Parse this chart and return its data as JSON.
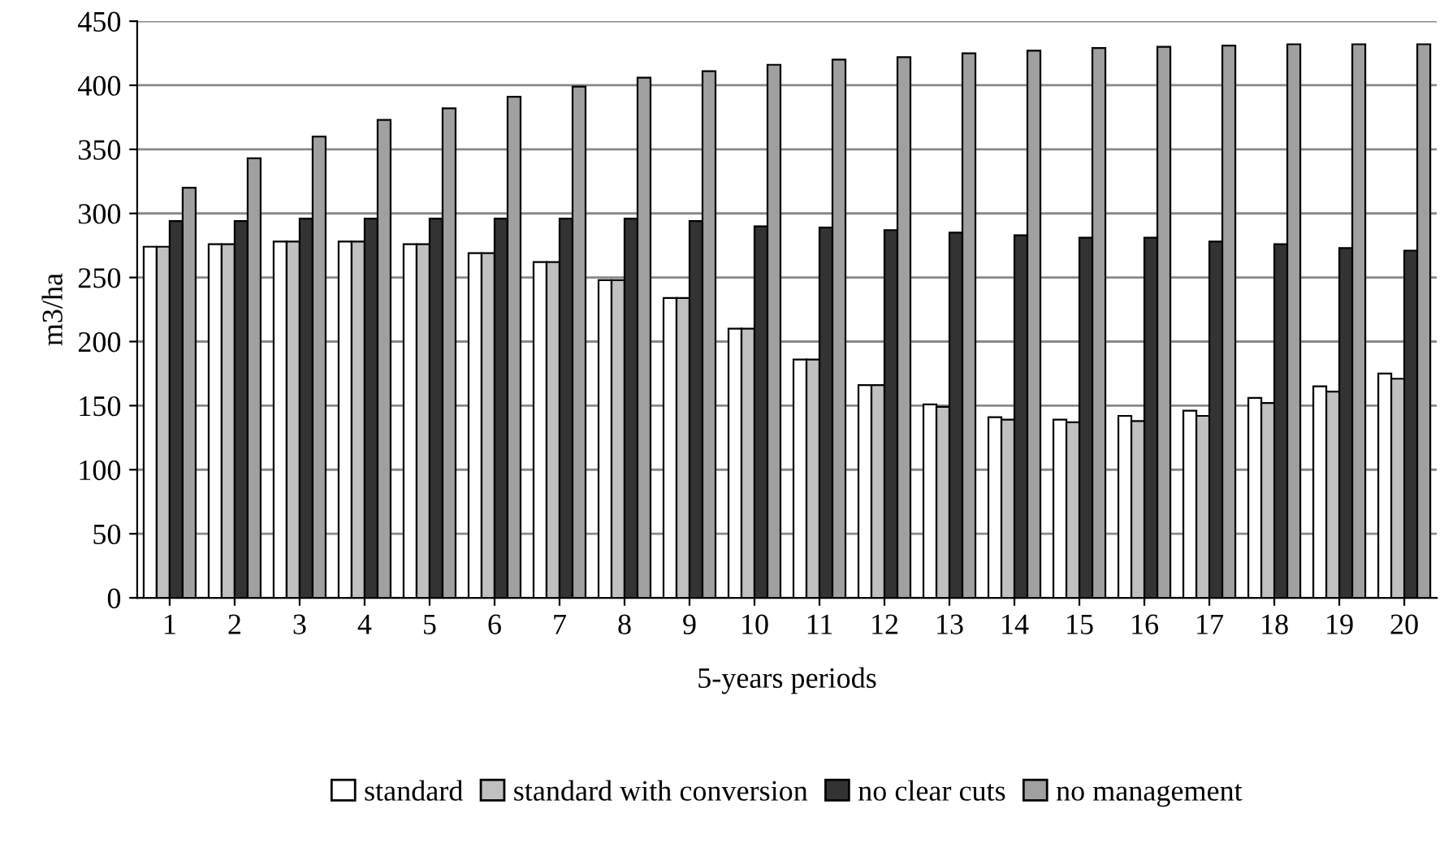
{
  "chart_data": {
    "type": "bar",
    "xlabel": "5-years periods",
    "ylabel": "m3/ha",
    "categories": [
      "1",
      "2",
      "3",
      "4",
      "5",
      "6",
      "7",
      "8",
      "9",
      "10",
      "11",
      "12",
      "13",
      "14",
      "15",
      "16",
      "17",
      "18",
      "19",
      "20"
    ],
    "series": [
      {
        "name": "standard",
        "color": "#ffffff",
        "values": [
          274,
          276,
          278,
          278,
          276,
          269,
          262,
          248,
          234,
          210,
          186,
          166,
          151,
          141,
          139,
          142,
          146,
          156,
          165,
          175
        ]
      },
      {
        "name": "standard with conversion",
        "color": "#c0c0c0",
        "values": [
          274,
          276,
          278,
          278,
          276,
          269,
          262,
          248,
          234,
          210,
          186,
          166,
          149,
          139,
          137,
          138,
          142,
          152,
          161,
          171
        ]
      },
      {
        "name": "no clear cuts",
        "color": "#333333",
        "values": [
          294,
          294,
          296,
          296,
          296,
          296,
          296,
          296,
          294,
          290,
          289,
          287,
          285,
          283,
          281,
          281,
          278,
          276,
          273,
          271
        ]
      },
      {
        "name": "no management",
        "color": "#a0a0a0",
        "values": [
          320,
          343,
          360,
          373,
          382,
          391,
          399,
          406,
          411,
          416,
          420,
          422,
          425,
          427,
          429,
          430,
          431,
          432,
          432,
          432
        ]
      }
    ],
    "ylim": [
      0,
      450
    ],
    "yticks": [
      0,
      50,
      100,
      150,
      200,
      250,
      300,
      350,
      400,
      450
    ],
    "grid": "y",
    "legend": "bottom"
  }
}
